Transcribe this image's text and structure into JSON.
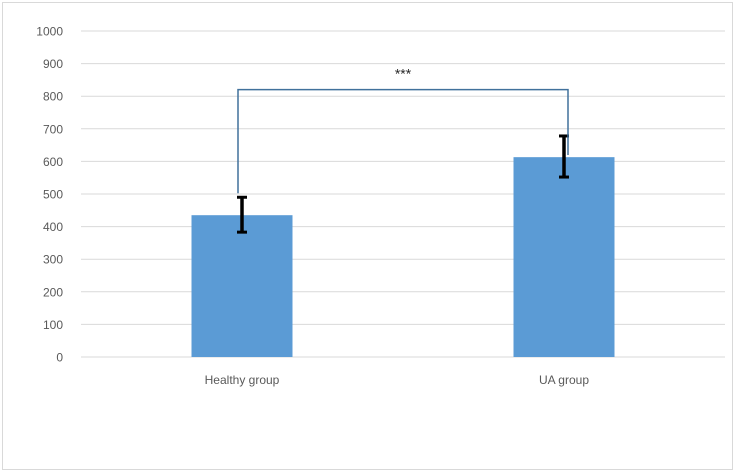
{
  "chart_data": {
    "type": "bar",
    "categories": [
      "Healthy group",
      "UA group"
    ],
    "values": [
      435,
      613
    ],
    "error_high": [
      490,
      678
    ],
    "error_low": [
      383,
      552
    ],
    "ylim": [
      0,
      1000
    ],
    "yticks": [
      0,
      100,
      200,
      300,
      400,
      500,
      600,
      700,
      800,
      900,
      1000
    ],
    "grid": true,
    "legend": "none",
    "title": "",
    "xlabel": "",
    "ylabel": "",
    "significance": {
      "label": "***",
      "between": [
        "Healthy group",
        "UA group"
      ],
      "bracket_y": 820
    },
    "colors": {
      "bar": "#5b9bd5",
      "grid": "#d9d9d9",
      "error": "#000000",
      "bracket": "#41719c",
      "text": "#595959"
    }
  }
}
